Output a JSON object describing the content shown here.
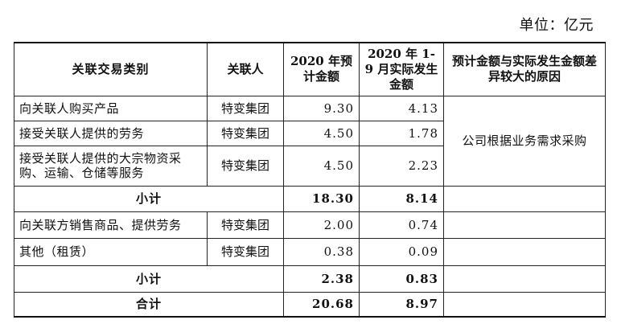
{
  "unit": "单位：亿元",
  "headers": {
    "type": "关联交易类别",
    "party": "关联人",
    "estimate": "2020 年预计金额",
    "actual": "2020 年 1-9 月实际发生金额",
    "reason": "预计金额与实际发生金额差异较大的原因"
  },
  "rows": [
    {
      "type": "向关联人购买产品",
      "party": "特变集团",
      "estimate": "9.30",
      "actual": "4.13"
    },
    {
      "type": "接受关联人提供的劳务",
      "party": "特变集团",
      "estimate": "4.50",
      "actual": "1.78"
    },
    {
      "type": "接受关联人提供的大宗物资采购、运输、仓储等服务",
      "party": "特变集团",
      "estimate": "4.50",
      "actual": "2.23"
    },
    {
      "type": "小计",
      "estimate": "18.30",
      "actual": "8.14"
    },
    {
      "type": "向关联方销售商品、提供劳务",
      "party": "特变集团",
      "estimate": "2.00",
      "actual": "0.74"
    },
    {
      "type": "其他（租赁）",
      "party": "特变集团",
      "estimate": "0.38",
      "actual": "0.09"
    },
    {
      "type": "小计",
      "estimate": "2.38",
      "actual": "0.83"
    },
    {
      "type": "合计",
      "estimate": "20.68",
      "actual": "8.97"
    }
  ],
  "reason_note": "公司根据业务需求采购"
}
